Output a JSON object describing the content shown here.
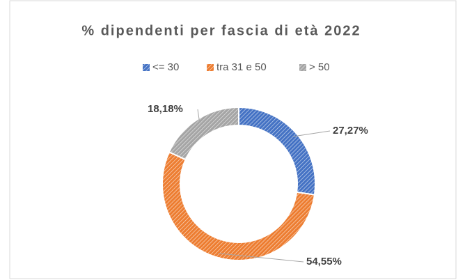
{
  "chart_data": {
    "type": "donut",
    "title": "% dipendenti per fascia di età 2022",
    "categories": [
      "<= 30",
      "tra 31 e 50",
      "> 50"
    ],
    "values": [
      27.27,
      54.55,
      18.18
    ],
    "value_labels": [
      "27,27%",
      "54,55%",
      "18,18%"
    ],
    "colors": [
      "#4472c4",
      "#ed7d31",
      "#a5a5a5"
    ],
    "legend": "top"
  }
}
